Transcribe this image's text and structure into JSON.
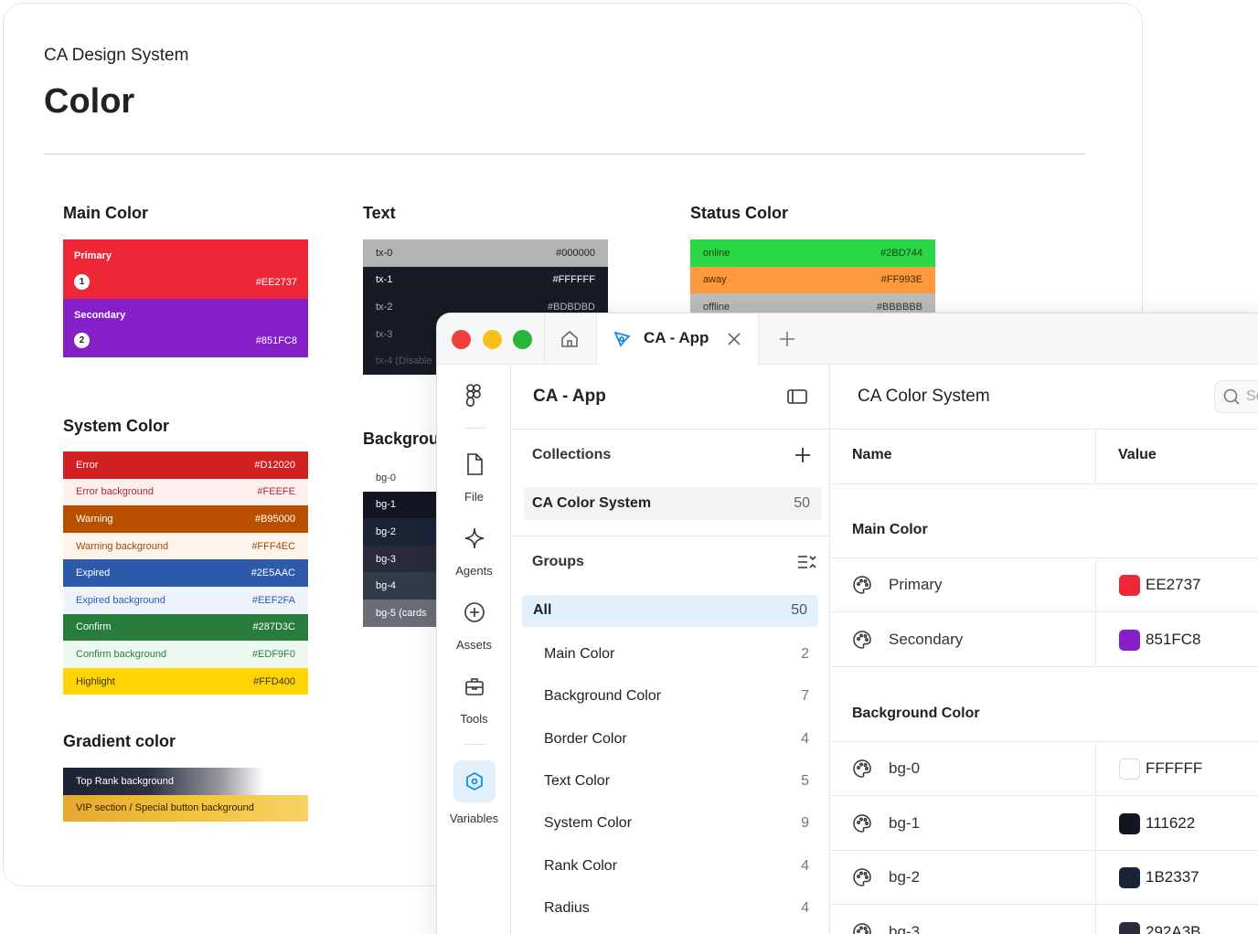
{
  "doc": {
    "eyebrow": "CA Design System",
    "title": "Color",
    "sections": {
      "main": "Main Color",
      "text": "Text",
      "status": "Status Color",
      "system": "System Color",
      "background": "Backgrou",
      "gradient": "Gradient color"
    },
    "main_colors": [
      {
        "label": "Primary",
        "num": "1",
        "hex": "#EE2737",
        "color": "#EE2737"
      },
      {
        "label": "Secondary",
        "num": "2",
        "hex": "#851FC8",
        "color": "#851FC8"
      }
    ],
    "text_colors": [
      {
        "name": "tx-0",
        "hex": "#000000",
        "bg": "#b3b3b3",
        "fg": "#222222"
      },
      {
        "name": "tx-1",
        "hex": "#FFFFFF",
        "bg": "#161b26",
        "fg": "#ffffff"
      },
      {
        "name": "tx-2",
        "hex": "#BDBDBD",
        "bg": "#161b26",
        "fg": "#bdbdbd"
      },
      {
        "name": "tx-3",
        "hex": "",
        "bg": "#161b26",
        "fg": "#8a8a8a"
      },
      {
        "name": "tx-4 (Disable",
        "hex": "",
        "bg": "#161b26",
        "fg": "#5a5a5a"
      }
    ],
    "status_colors": [
      {
        "name": "online",
        "hex": "#2BD744",
        "bg": "#2BD744",
        "fg": "#1a3d1a"
      },
      {
        "name": "away",
        "hex": "#FF993E",
        "bg": "#FF993E",
        "fg": "#4a2a00"
      },
      {
        "name": "offline",
        "hex": "#BBBBBB",
        "bg": "#BBBBBB",
        "fg": "#333333"
      }
    ],
    "system_colors": [
      {
        "name": "Error",
        "hex": "#D12020",
        "bg": "#D12020",
        "fg": "#ffffff"
      },
      {
        "name": "Error background",
        "hex": "#FEEFE",
        "bg": "#FEEFEF",
        "fg": "#B0282E"
      },
      {
        "name": "Warning",
        "hex": "#B95000",
        "bg": "#B95000",
        "fg": "#ffffff"
      },
      {
        "name": "Warning background",
        "hex": "#FFF4EC",
        "bg": "#FFF4EC",
        "fg": "#9a4a00"
      },
      {
        "name": "Expired",
        "hex": "#2E5AAC",
        "bg": "#2E5AAC",
        "fg": "#ffffff"
      },
      {
        "name": "Expired background",
        "hex": "#EEF2FA",
        "bg": "#EEF2FA",
        "fg": "#2E5AAC"
      },
      {
        "name": "Confirm",
        "hex": "#287D3C",
        "bg": "#287D3C",
        "fg": "#ffffff"
      },
      {
        "name": "Confirm background",
        "hex": "#EDF9F0",
        "bg": "#EDF9F0",
        "fg": "#287D3C"
      },
      {
        "name": "Highlight",
        "hex": "#FFD400",
        "bg": "#FFD400",
        "fg": "#333333"
      }
    ],
    "bg_colors": [
      {
        "name": "bg-0",
        "bg": "#ffffff",
        "fg": "#333333"
      },
      {
        "name": "bg-1",
        "bg": "#111622",
        "fg": "#ffffff"
      },
      {
        "name": "bg-2",
        "bg": "#1B2337",
        "fg": "#ffffff"
      },
      {
        "name": "bg-3",
        "bg": "#292A3B",
        "fg": "#ffffff"
      },
      {
        "name": "bg-4",
        "bg": "#333a4a",
        "fg": "#ffffff"
      },
      {
        "name": "bg-5 (cards",
        "bg": "#6b6e76",
        "fg": "#ffffff"
      }
    ],
    "gradients": [
      {
        "name": "Top Rank background"
      },
      {
        "name": "VIP section / Special button background"
      }
    ]
  },
  "app": {
    "tab_label": "CA - App",
    "rail": [
      {
        "label": "File",
        "icon": "file-icon"
      },
      {
        "label": "Agents",
        "icon": "agents-icon"
      },
      {
        "label": "Assets",
        "icon": "assets-icon"
      },
      {
        "label": "Tools",
        "icon": "tools-icon"
      },
      {
        "label": "Variables",
        "icon": "variables-icon"
      }
    ],
    "panel": {
      "title": "CA - App",
      "collections_label": "Collections",
      "collection": {
        "name": "CA Color System",
        "count": "50"
      },
      "groups_label": "Groups",
      "all": {
        "name": "All",
        "count": "50"
      },
      "groups": [
        {
          "name": "Main Color",
          "count": "2"
        },
        {
          "name": "Background Color",
          "count": "7"
        },
        {
          "name": "Border Color",
          "count": "4"
        },
        {
          "name": "Text Color",
          "count": "5"
        },
        {
          "name": "System Color",
          "count": "9"
        },
        {
          "name": "Rank Color",
          "count": "4"
        },
        {
          "name": "Radius",
          "count": "4"
        }
      ]
    },
    "main": {
      "title": "CA Color System",
      "search_placeholder": "Se",
      "col_name": "Name",
      "col_value": "Value",
      "groups": [
        {
          "title": "Main Color",
          "rows": [
            {
              "name": "Primary",
              "value": "EE2737",
              "color": "#EE2737"
            },
            {
              "name": "Secondary",
              "value": "851FC8",
              "color": "#851FC8"
            }
          ]
        },
        {
          "title": "Background Color",
          "rows": [
            {
              "name": "bg-0",
              "value": "FFFFFF",
              "color": "#FFFFFF"
            },
            {
              "name": "bg-1",
              "value": "111622",
              "color": "#111622"
            },
            {
              "name": "bg-2",
              "value": "1B2337",
              "color": "#1B2337"
            },
            {
              "name": "bg-3",
              "value": "292A3B",
              "color": "#292A3B"
            }
          ]
        }
      ]
    }
  }
}
